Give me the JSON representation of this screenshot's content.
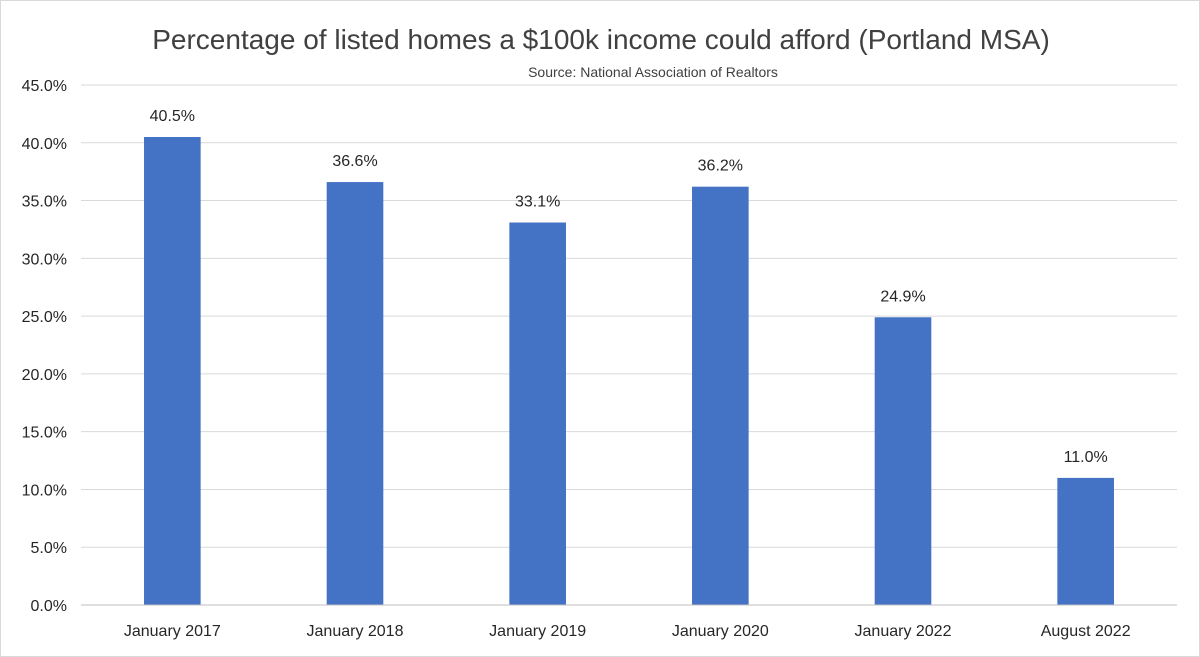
{
  "chart_data": {
    "type": "bar",
    "title": "Percentage of listed homes a $100k income could afford (Portland MSA)",
    "subtitle": "Source: National Association of Realtors",
    "categories": [
      "January 2017",
      "January 2018",
      "January 2019",
      "January 2020",
      "January 2022",
      "August 2022"
    ],
    "values": [
      40.5,
      36.6,
      33.1,
      36.2,
      24.9,
      11.0
    ],
    "data_labels": [
      "40.5%",
      "36.6%",
      "33.1%",
      "36.2%",
      "24.9%",
      "11.0%"
    ],
    "ylim": [
      0,
      45
    ],
    "y_ticks": [
      0,
      5,
      10,
      15,
      20,
      25,
      30,
      35,
      40,
      45
    ],
    "y_tick_labels": [
      "0.0%",
      "5.0%",
      "10.0%",
      "15.0%",
      "20.0%",
      "25.0%",
      "30.0%",
      "35.0%",
      "40.0%",
      "45.0%"
    ],
    "grid": true,
    "legend": "none",
    "bar_color": "#4472c4"
  }
}
